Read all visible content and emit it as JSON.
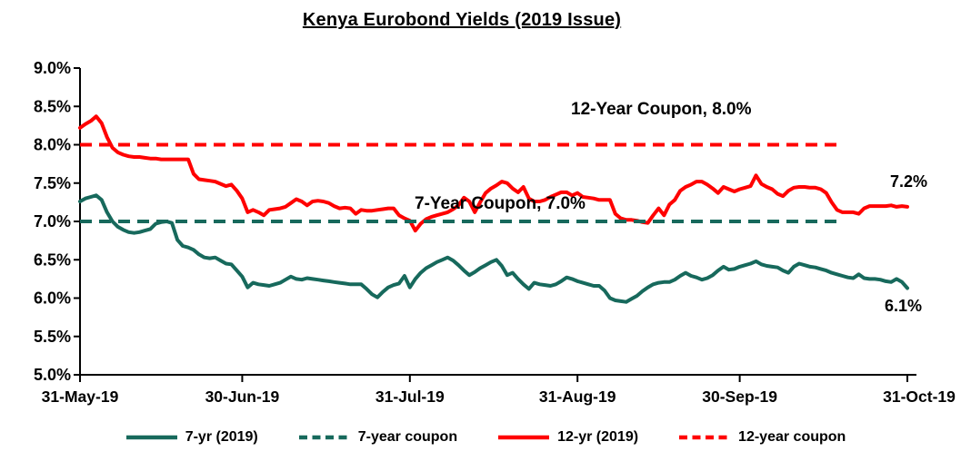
{
  "title": "Kenya Eurobond Yields (2019 Issue)",
  "colors": {
    "seven_year": "#17695C",
    "twelve_year": "#FF0000",
    "text": "#000000",
    "axis": "#000000",
    "background": "#FFFFFF"
  },
  "annotations": {
    "twelve_year_coupon": "12-Year Coupon, 8.0%",
    "seven_year_coupon": "7-Year Coupon, 7.0%",
    "twelve_year_end": "7.2%",
    "seven_year_end": "6.1%"
  },
  "legend": [
    {
      "label": "7-yr (2019)",
      "style": "solid",
      "color_key": "seven_year"
    },
    {
      "label": "7-year coupon",
      "style": "dashed",
      "color_key": "seven_year"
    },
    {
      "label": "12-yr (2019)",
      "style": "solid",
      "color_key": "twelve_year"
    },
    {
      "label": "12-year coupon",
      "style": "dashed",
      "color_key": "twelve_year"
    }
  ],
  "chart_data": {
    "type": "line",
    "title": "Kenya Eurobond Yields (2019 Issue)",
    "grid": false,
    "legend_position": "bottom",
    "x_axis": {
      "tick_labels": [
        "31-May-19",
        "30-Jun-19",
        "31-Jul-19",
        "31-Aug-19",
        "30-Sep-19",
        "31-Oct-19"
      ],
      "tick_days": [
        0,
        30,
        61,
        92,
        122,
        153
      ],
      "total_days": 153
    },
    "y_axis": {
      "tick_labels": [
        "9.0%",
        "8.5%",
        "8.0%",
        "7.5%",
        "7.0%",
        "6.5%",
        "6.0%",
        "5.5%",
        "5.0%"
      ],
      "min": 5.0,
      "max": 9.0,
      "step": 0.5,
      "unit": "%"
    },
    "series": [
      {
        "name": "12-yr (2019)",
        "style": "solid",
        "color_key": "twelve_year",
        "end_label": "7.2%",
        "values": [
          8.22,
          8.27,
          8.31,
          8.37,
          8.28,
          8.1,
          7.96,
          7.9,
          7.87,
          7.85,
          7.84,
          7.84,
          7.83,
          7.82,
          7.82,
          7.81,
          7.81,
          7.81,
          7.81,
          7.81,
          7.81,
          7.62,
          7.55,
          7.54,
          7.53,
          7.52,
          7.49,
          7.46,
          7.48,
          7.4,
          7.3,
          7.12,
          7.15,
          7.12,
          7.08,
          7.15,
          7.16,
          7.17,
          7.19,
          7.24,
          7.29,
          7.26,
          7.21,
          7.26,
          7.27,
          7.26,
          7.24,
          7.2,
          7.17,
          7.18,
          7.17,
          7.1,
          7.15,
          7.14,
          7.14,
          7.15,
          7.16,
          7.17,
          7.17,
          7.08,
          7.04,
          7.01,
          6.88,
          6.97,
          7.03,
          7.06,
          7.08,
          7.1,
          7.12,
          7.16,
          7.21,
          7.31,
          7.26,
          7.12,
          7.25,
          7.37,
          7.43,
          7.47,
          7.52,
          7.5,
          7.43,
          7.38,
          7.45,
          7.3,
          7.26,
          7.26,
          7.28,
          7.32,
          7.35,
          7.38,
          7.38,
          7.34,
          7.37,
          7.32,
          7.31,
          7.3,
          7.28,
          7.28,
          7.28,
          7.1,
          7.04,
          7.02,
          7.02,
          7.01,
          6.99,
          6.98,
          7.08,
          7.17,
          7.08,
          7.22,
          7.28,
          7.4,
          7.45,
          7.48,
          7.52,
          7.52,
          7.48,
          7.43,
          7.37,
          7.45,
          7.42,
          7.39,
          7.42,
          7.44,
          7.46,
          7.6,
          7.49,
          7.45,
          7.42,
          7.36,
          7.33,
          7.4,
          7.44,
          7.45,
          7.45,
          7.44,
          7.44,
          7.42,
          7.37,
          7.25,
          7.15,
          7.12,
          7.12,
          7.12,
          7.1,
          7.17,
          7.2,
          7.2,
          7.2,
          7.2,
          7.21,
          7.19,
          7.2,
          7.19
        ]
      },
      {
        "name": "7-yr (2019)",
        "style": "solid",
        "color_key": "seven_year",
        "end_label": "6.1%",
        "values": [
          7.26,
          7.3,
          7.32,
          7.34,
          7.28,
          7.12,
          7.0,
          6.93,
          6.89,
          6.86,
          6.85,
          6.86,
          6.88,
          6.9,
          6.97,
          6.99,
          7.0,
          6.98,
          6.76,
          6.68,
          6.66,
          6.63,
          6.57,
          6.53,
          6.52,
          6.53,
          6.49,
          6.45,
          6.44,
          6.36,
          6.28,
          6.14,
          6.2,
          6.18,
          6.17,
          6.16,
          6.18,
          6.2,
          6.24,
          6.28,
          6.25,
          6.24,
          6.26,
          6.25,
          6.24,
          6.23,
          6.22,
          6.21,
          6.2,
          6.19,
          6.18,
          6.18,
          6.18,
          6.12,
          6.05,
          6.01,
          6.08,
          6.14,
          6.17,
          6.19,
          6.29,
          6.14,
          6.25,
          6.33,
          6.39,
          6.43,
          6.47,
          6.5,
          6.53,
          6.49,
          6.43,
          6.36,
          6.3,
          6.34,
          6.39,
          6.43,
          6.47,
          6.5,
          6.42,
          6.3,
          6.33,
          6.25,
          6.18,
          6.12,
          6.2,
          6.18,
          6.17,
          6.16,
          6.18,
          6.22,
          6.27,
          6.25,
          6.22,
          6.2,
          6.18,
          6.16,
          6.16,
          6.1,
          6.0,
          5.97,
          5.96,
          5.95,
          5.99,
          6.03,
          6.09,
          6.14,
          6.18,
          6.2,
          6.21,
          6.21,
          6.24,
          6.29,
          6.33,
          6.29,
          6.27,
          6.24,
          6.26,
          6.3,
          6.36,
          6.41,
          6.37,
          6.38,
          6.41,
          6.43,
          6.45,
          6.48,
          6.44,
          6.42,
          6.41,
          6.4,
          6.36,
          6.33,
          6.41,
          6.45,
          6.43,
          6.41,
          6.4,
          6.38,
          6.36,
          6.33,
          6.31,
          6.29,
          6.27,
          6.26,
          6.31,
          6.26,
          6.25,
          6.25,
          6.24,
          6.22,
          6.21,
          6.25,
          6.21,
          6.13
        ]
      },
      {
        "name": "12-year coupon",
        "style": "dashed",
        "color_key": "twelve_year",
        "constant": 8.0,
        "day_range": [
          0,
          140
        ]
      },
      {
        "name": "7-year coupon",
        "style": "dashed",
        "color_key": "seven_year",
        "constant": 7.0,
        "day_range": [
          0,
          140
        ]
      }
    ]
  }
}
